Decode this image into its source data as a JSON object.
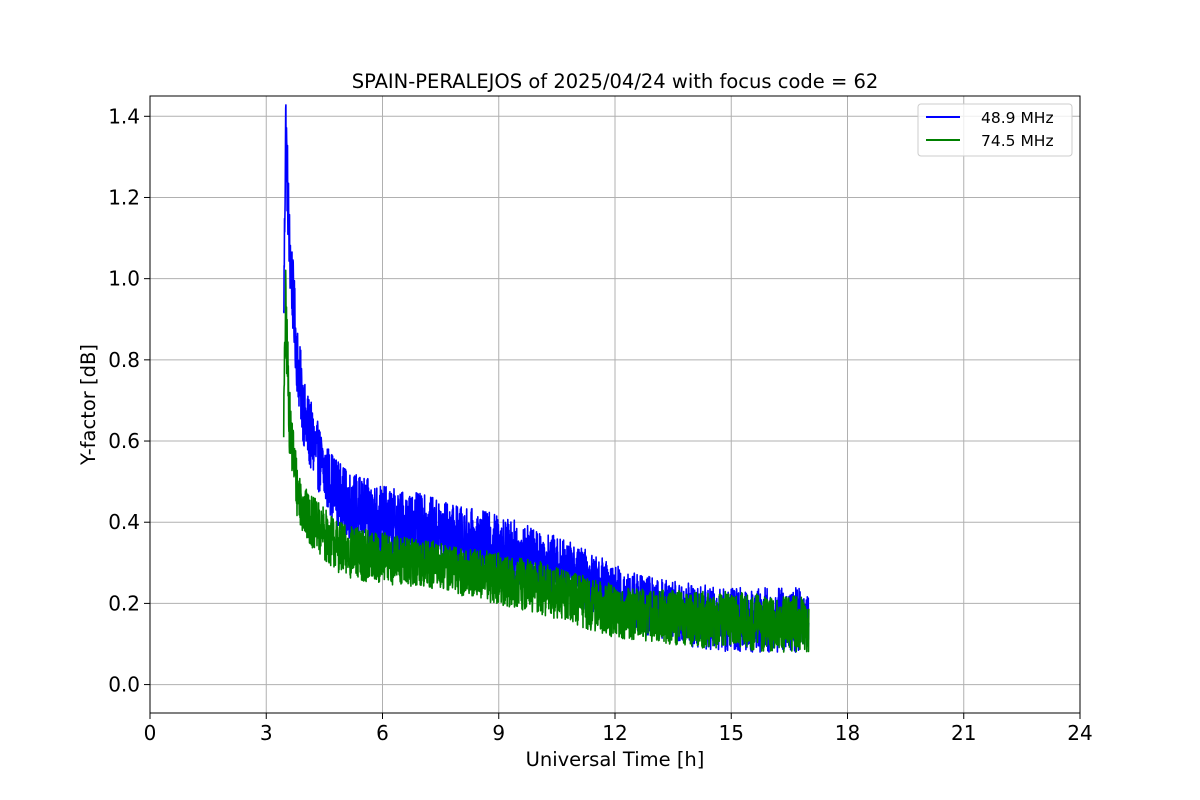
{
  "chart_data": {
    "type": "line",
    "title": "SPAIN-PERALEJOS of 2025/04/24 with focus code = 62",
    "xlabel": "Universal Time [h]",
    "ylabel": "Y-factor [dB]",
    "xlim": [
      0,
      24
    ],
    "ylim": [
      -0.07,
      1.45
    ],
    "xticks": [
      0,
      3,
      6,
      9,
      12,
      15,
      18,
      21,
      24
    ],
    "yticks": [
      0.0,
      0.2,
      0.4,
      0.6,
      0.8,
      1.0,
      1.2,
      1.4
    ],
    "xtick_labels": [
      "0",
      "3",
      "6",
      "9",
      "12",
      "15",
      "18",
      "21",
      "24"
    ],
    "ytick_labels": [
      "0.0",
      "0.2",
      "0.4",
      "0.6",
      "0.8",
      "1.0",
      "1.2",
      "1.4"
    ],
    "grid": true,
    "legend_position": "top-right",
    "series": [
      {
        "name": "48.9 MHz",
        "color": "#0000ff",
        "x": [
          3.45,
          3.5,
          3.6,
          3.8,
          4.0,
          4.5,
          5.0,
          6.0,
          7.0,
          8.0,
          9.0,
          10.0,
          11.0,
          12.0,
          13.0,
          14.0,
          15.0,
          16.0,
          17.0
        ],
        "y": [
          0.9,
          1.38,
          1.08,
          0.8,
          0.65,
          0.52,
          0.45,
          0.4,
          0.39,
          0.36,
          0.34,
          0.31,
          0.27,
          0.22,
          0.19,
          0.17,
          0.16,
          0.16,
          0.16
        ],
        "noise": [
          0.05,
          0.12,
          0.1,
          0.09,
          0.09,
          0.08,
          0.085,
          0.09,
          0.08,
          0.08,
          0.08,
          0.075,
          0.075,
          0.075,
          0.075,
          0.08,
          0.08,
          0.08,
          0.08
        ]
      },
      {
        "name": "74.5 MHz",
        "color": "#008000",
        "x": [
          3.45,
          3.5,
          3.6,
          3.8,
          4.0,
          4.5,
          5.0,
          6.0,
          7.0,
          8.0,
          9.0,
          10.0,
          11.0,
          12.0,
          13.0,
          14.0,
          15.0,
          16.0,
          17.0
        ],
        "y": [
          0.65,
          0.93,
          0.65,
          0.48,
          0.42,
          0.37,
          0.33,
          0.31,
          0.3,
          0.28,
          0.26,
          0.24,
          0.21,
          0.18,
          0.17,
          0.16,
          0.16,
          0.15,
          0.15
        ],
        "noise": [
          0.05,
          0.1,
          0.08,
          0.07,
          0.065,
          0.065,
          0.065,
          0.065,
          0.06,
          0.06,
          0.065,
          0.065,
          0.065,
          0.065,
          0.065,
          0.07,
          0.07,
          0.07,
          0.07
        ]
      }
    ]
  }
}
